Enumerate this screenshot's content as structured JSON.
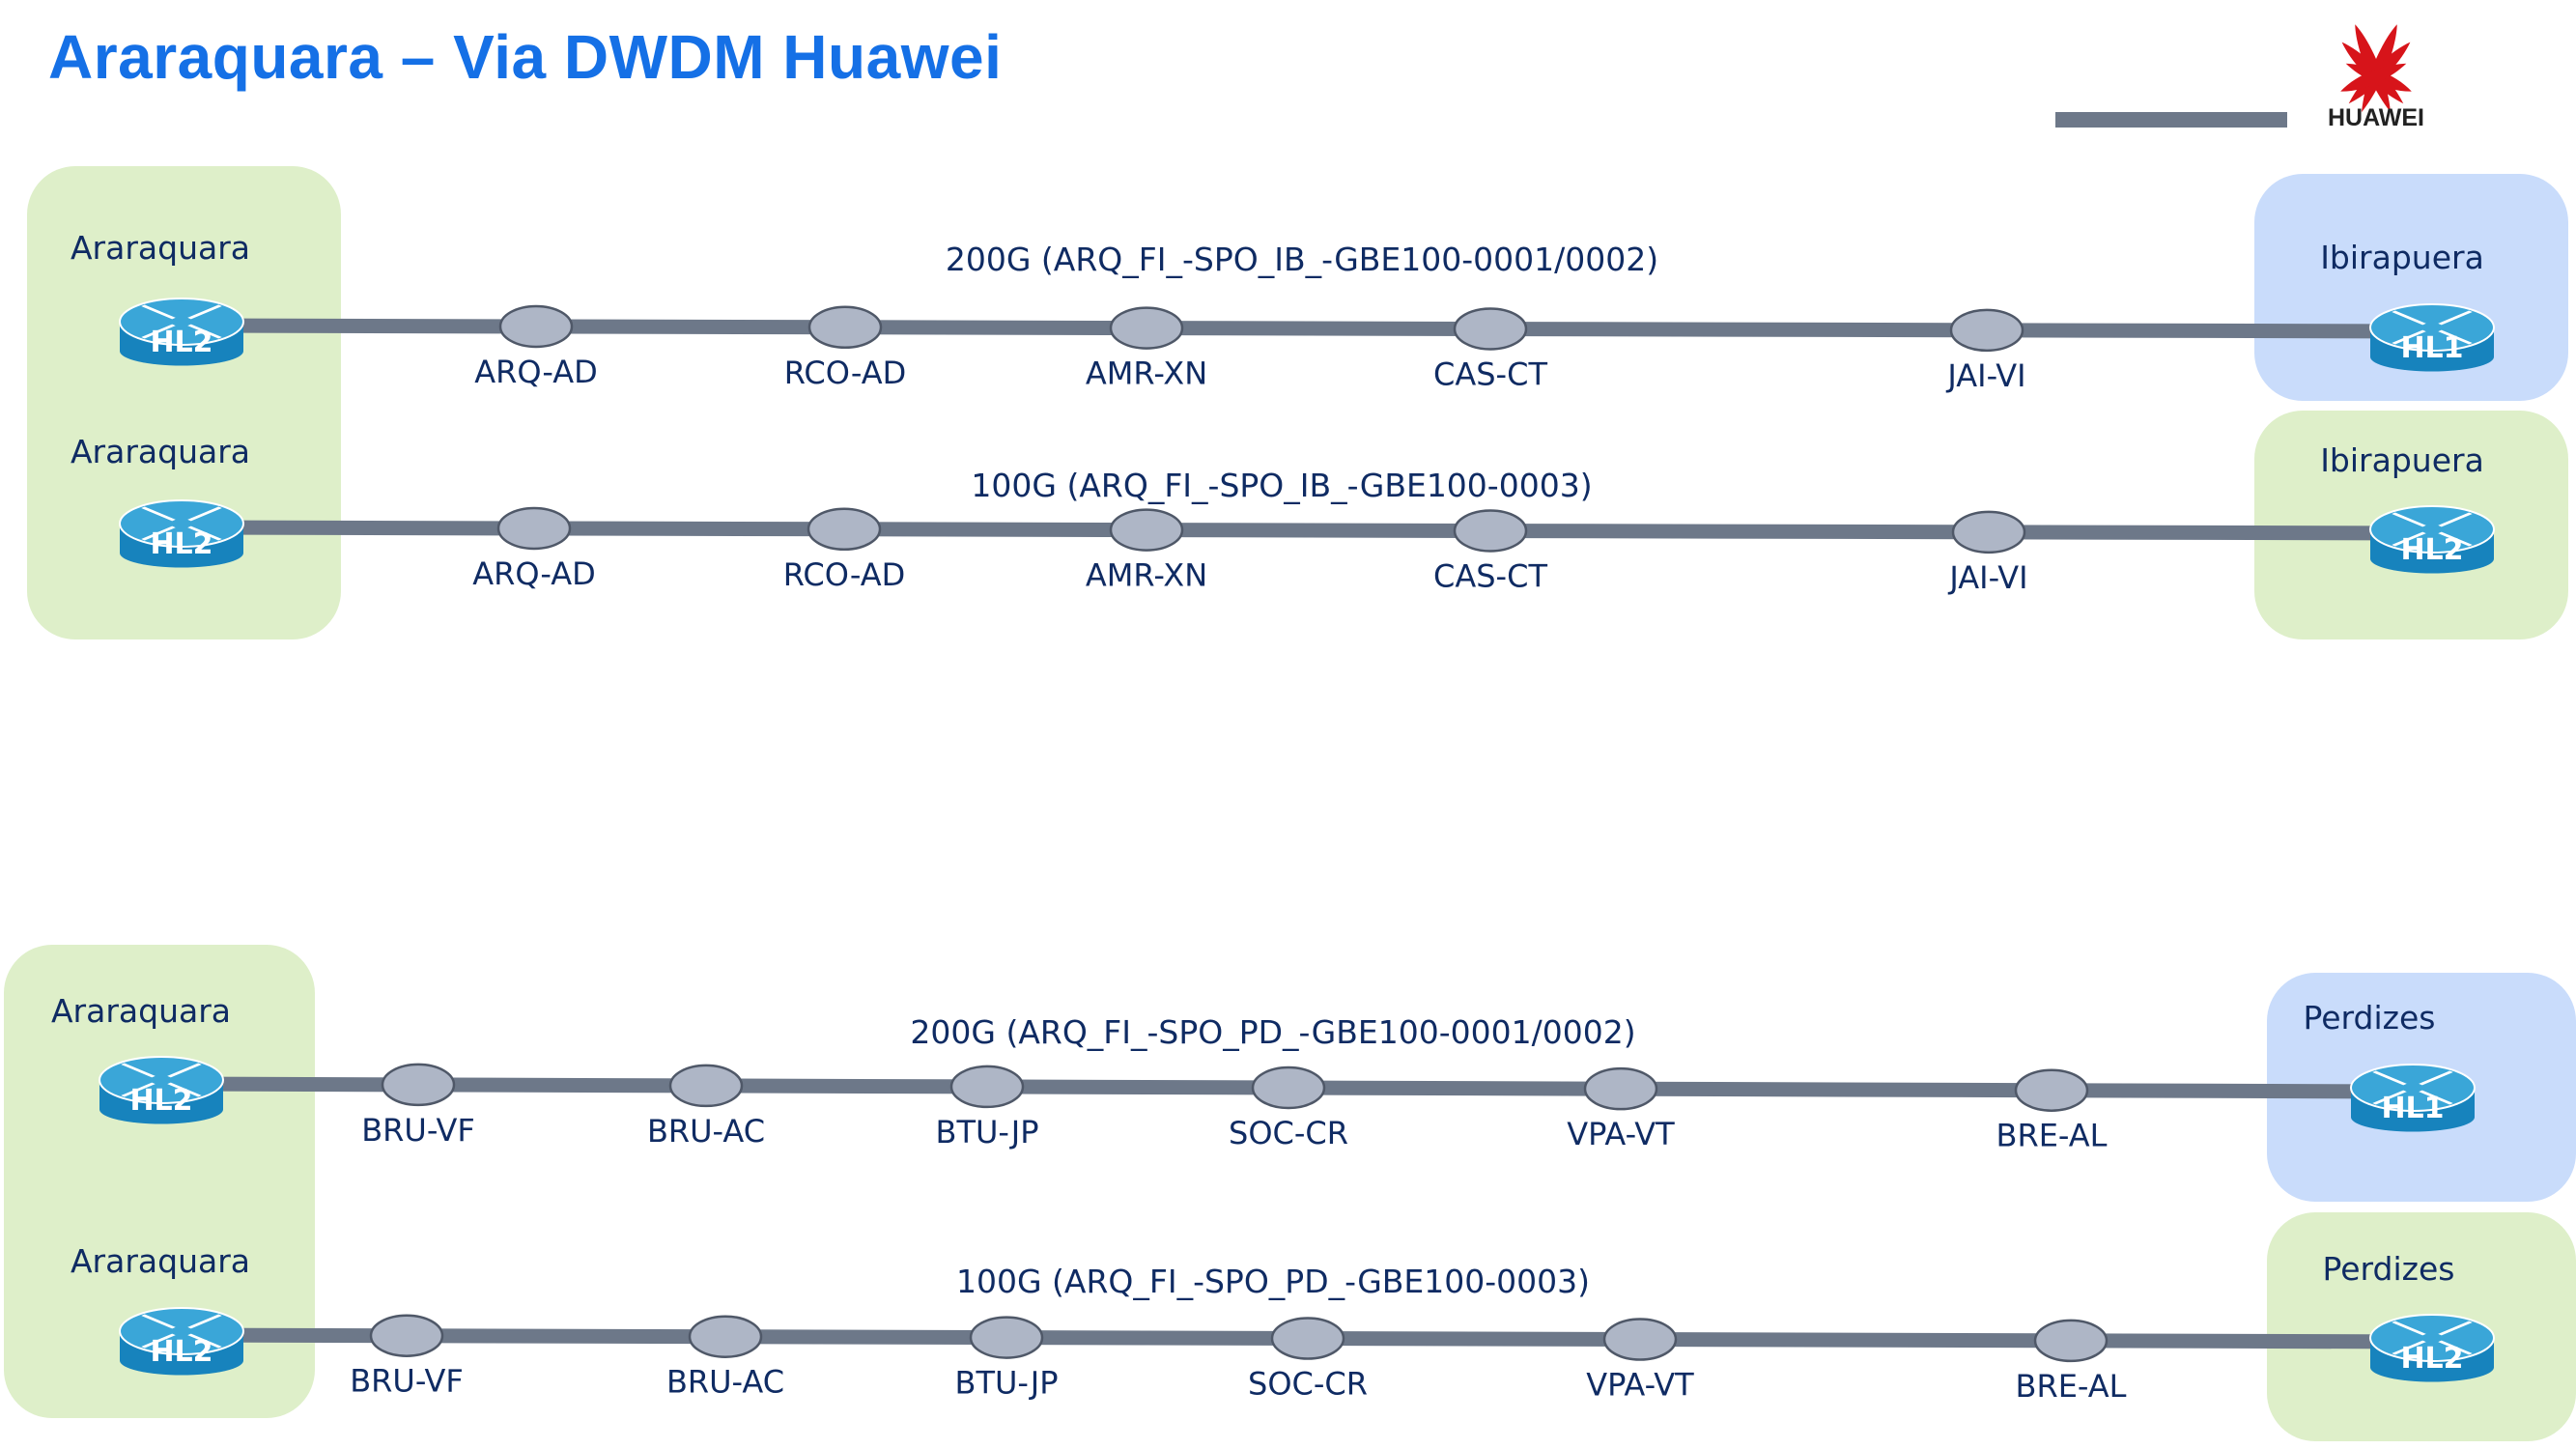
{
  "title": "Araraquara – Via DWDM Huawei",
  "logo": {
    "text": "HUAWEI",
    "colors": {
      "petal": "#d7141a",
      "text": "#222222"
    }
  },
  "colors": {
    "link": "#6d7889",
    "node_fill": "#aeb6c6",
    "node_stroke": "#4f5868",
    "router_top": "#3aa6d8",
    "router_body": "#1783bd",
    "zone_green": "#deefc9",
    "zone_blue": "#c9dcfb",
    "label": "#0f2b63"
  },
  "links": [
    {
      "label": "200G (ARQ_FI_-SPO_IB_-GBE100-0001/0002)",
      "source": {
        "site": "Araraquara",
        "router": "HL2"
      },
      "target": {
        "site": "Ibirapuera",
        "router": "HL1"
      },
      "nodes": [
        "ARQ-AD",
        "RCO-AD",
        "AMR-XN",
        "CAS-CT",
        "JAI-VI"
      ]
    },
    {
      "label": "100G (ARQ_FI_-SPO_IB_-GBE100-0003)",
      "source": {
        "site": "Araraquara",
        "router": "HL2"
      },
      "target": {
        "site": "Ibirapuera",
        "router": "HL2"
      },
      "nodes": [
        "ARQ-AD",
        "RCO-AD",
        "AMR-XN",
        "CAS-CT",
        "JAI-VI"
      ]
    },
    {
      "label": "200G (ARQ_FI_-SPO_PD_-GBE100-0001/0002)",
      "source": {
        "site": "Araraquara",
        "router": "HL2"
      },
      "target": {
        "site": "Perdizes",
        "router": "HL1"
      },
      "nodes": [
        "BRU-VF",
        "BRU-AC",
        "BTU-JP",
        "SOC-CR",
        "VPA-VT",
        "BRE-AL"
      ]
    },
    {
      "label": "100G (ARQ_FI_-SPO_PD_-GBE100-0003)",
      "source": {
        "site": "Araraquara",
        "router": "HL2"
      },
      "target": {
        "site": "Perdizes",
        "router": "HL2"
      },
      "nodes": [
        "BRU-VF",
        "BRU-AC",
        "BTU-JP",
        "SOC-CR",
        "VPA-VT",
        "BRE-AL"
      ]
    }
  ]
}
